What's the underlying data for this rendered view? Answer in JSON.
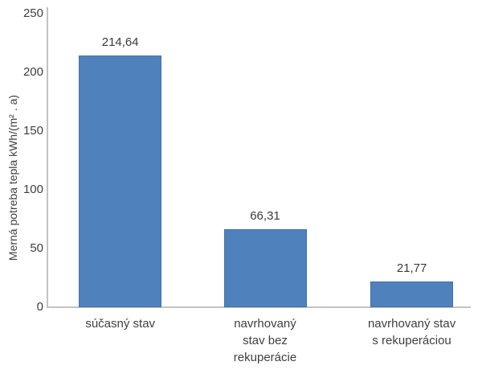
{
  "chart_data": {
    "type": "bar",
    "title": "",
    "ylabel": "Merná potreba tepla kWh/(m² . a)",
    "xlabel": "",
    "ylim": [
      0,
      250
    ],
    "yticks": [
      0,
      50,
      100,
      150,
      200,
      250
    ],
    "ytick_labels": [
      "0",
      "50",
      "100",
      "150",
      "200",
      "250"
    ],
    "categories": [
      "súčasný stav",
      "navrhovaný stav bez rekuperácie",
      "navrhovaný stav s rekuperáciou"
    ],
    "category_lines": [
      [
        "súčasný stav"
      ],
      [
        "navrhovaný",
        "stav bez",
        "rekuperácie"
      ],
      [
        "navrhovaný stav",
        "s rekuperáciou"
      ]
    ],
    "values": [
      214.64,
      66.31,
      21.77
    ],
    "value_labels": [
      "214,64",
      "66,31",
      "21,77"
    ],
    "grid": false,
    "legend": null,
    "colors": {
      "bar_fill": "#4f81bd",
      "bar_border": "#4173a3",
      "axis_line": "#c3c3c3",
      "text": "#3f3f3f",
      "background": "#ffffff"
    }
  }
}
